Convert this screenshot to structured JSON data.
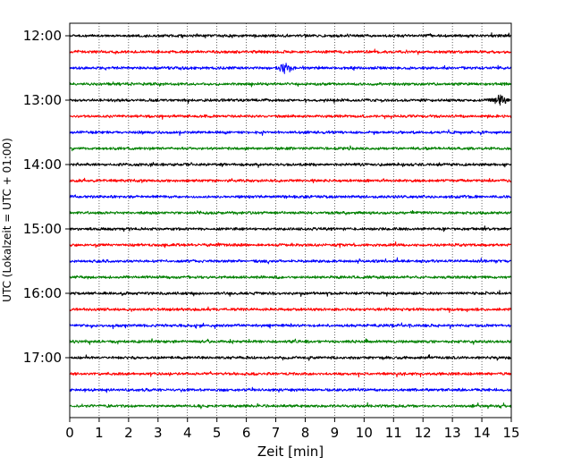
{
  "chart_data": {
    "type": "line",
    "title": "",
    "xlabel": "Zeit  [min]",
    "ylabel": "UTC (Lokalzeit = UTC + 01:00)",
    "xlim": [
      0,
      15
    ],
    "x_ticks": [
      "0",
      "1",
      "2",
      "3",
      "4",
      "5",
      "6",
      "7",
      "8",
      "9",
      "10",
      "11",
      "12",
      "13",
      "14",
      "15"
    ],
    "y_ticks": [
      "12:00",
      "13:00",
      "14:00",
      "15:00",
      "16:00",
      "17:00"
    ],
    "grid_x": true,
    "grid_style": "dotted",
    "trace_interval_minutes": 15,
    "color_cycle": [
      "#000000",
      "#ff0000",
      "#0000ff",
      "#008000"
    ],
    "series": [
      {
        "start": "12:00",
        "color": "#000000",
        "amplitude": 1.0
      },
      {
        "start": "12:15",
        "color": "#ff0000",
        "amplitude": 1.0
      },
      {
        "start": "12:30",
        "color": "#0000ff",
        "amplitude": 1.0,
        "burst_at_min": 7.3
      },
      {
        "start": "12:45",
        "color": "#008000",
        "amplitude": 1.0
      },
      {
        "start": "13:00",
        "color": "#000000",
        "amplitude": 1.0,
        "burst_at_min": 14.6
      },
      {
        "start": "13:15",
        "color": "#ff0000",
        "amplitude": 1.0
      },
      {
        "start": "13:30",
        "color": "#0000ff",
        "amplitude": 1.0
      },
      {
        "start": "13:45",
        "color": "#008000",
        "amplitude": 1.0
      },
      {
        "start": "14:00",
        "color": "#000000",
        "amplitude": 1.0
      },
      {
        "start": "14:15",
        "color": "#ff0000",
        "amplitude": 1.0
      },
      {
        "start": "14:30",
        "color": "#0000ff",
        "amplitude": 1.0
      },
      {
        "start": "14:45",
        "color": "#008000",
        "amplitude": 1.0
      },
      {
        "start": "15:00",
        "color": "#000000",
        "amplitude": 1.0
      },
      {
        "start": "15:15",
        "color": "#ff0000",
        "amplitude": 1.0
      },
      {
        "start": "15:30",
        "color": "#0000ff",
        "amplitude": 1.0
      },
      {
        "start": "15:45",
        "color": "#008000",
        "amplitude": 1.0
      },
      {
        "start": "16:00",
        "color": "#000000",
        "amplitude": 1.0
      },
      {
        "start": "16:15",
        "color": "#ff0000",
        "amplitude": 1.0
      },
      {
        "start": "16:30",
        "color": "#0000ff",
        "amplitude": 1.0
      },
      {
        "start": "16:45",
        "color": "#008000",
        "amplitude": 1.0
      },
      {
        "start": "17:00",
        "color": "#000000",
        "amplitude": 1.0
      },
      {
        "start": "17:15",
        "color": "#ff0000",
        "amplitude": 1.0
      },
      {
        "start": "17:30",
        "color": "#0000ff",
        "amplitude": 1.0
      },
      {
        "start": "17:45",
        "color": "#008000",
        "amplitude": 1.0
      }
    ]
  }
}
